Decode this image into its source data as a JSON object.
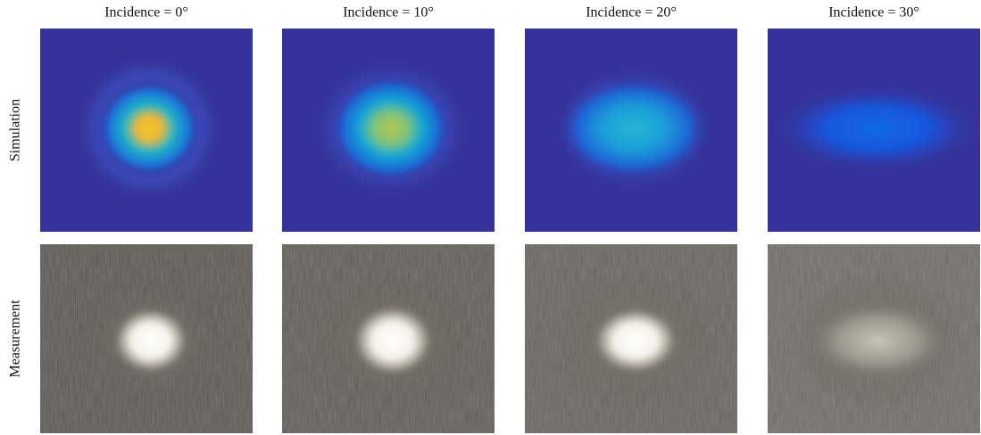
{
  "column_titles": [
    "Incidence = 0°",
    "Incidence = 10°",
    "Incidence = 20°",
    "Incidence = 30°"
  ],
  "row_labels": [
    "Simulation",
    "Measurement"
  ]
}
